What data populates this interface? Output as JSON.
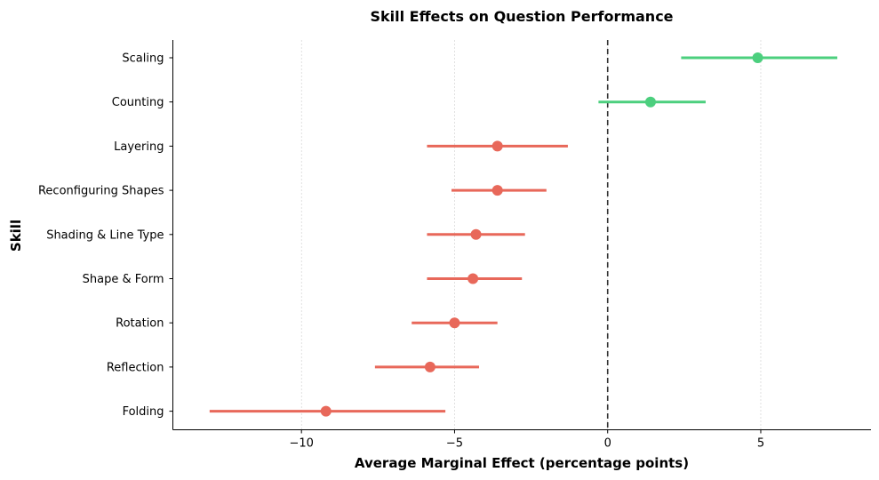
{
  "chart_data": {
    "type": "errorbar-dot",
    "title": "Skill Effects on Question Performance",
    "xlabel": "Average Marginal Effect (percentage points)",
    "ylabel": "Skill",
    "xlim": [
      -14.2,
      8.6
    ],
    "xticks": [
      -10,
      -5,
      0,
      5
    ],
    "xtick_labels": [
      "−10",
      "−5",
      "0",
      "5"
    ],
    "reference_line": 0,
    "grid": "x-only, dotted",
    "colors": {
      "positive": "#4ccf7e",
      "negative": "#e8685a"
    },
    "skills": [
      {
        "name": "Scaling",
        "estimate": 4.9,
        "ci_low": 2.4,
        "ci_high": 7.5
      },
      {
        "name": "Counting",
        "estimate": 1.4,
        "ci_low": -0.3,
        "ci_high": 3.2
      },
      {
        "name": "Layering",
        "estimate": -3.6,
        "ci_low": -5.9,
        "ci_high": -1.3
      },
      {
        "name": "Reconfiguring Shapes",
        "estimate": -3.6,
        "ci_low": -5.1,
        "ci_high": -2.0
      },
      {
        "name": "Shading & Line Type",
        "estimate": -4.3,
        "ci_low": -5.9,
        "ci_high": -2.7
      },
      {
        "name": "Shape & Form",
        "estimate": -4.4,
        "ci_low": -5.9,
        "ci_high": -2.8
      },
      {
        "name": "Rotation",
        "estimate": -5.0,
        "ci_low": -6.4,
        "ci_high": -3.6
      },
      {
        "name": "Reflection",
        "estimate": -5.8,
        "ci_low": -7.6,
        "ci_high": -4.2
      },
      {
        "name": "Folding",
        "estimate": -9.2,
        "ci_low": -13.0,
        "ci_high": -5.3
      }
    ]
  }
}
